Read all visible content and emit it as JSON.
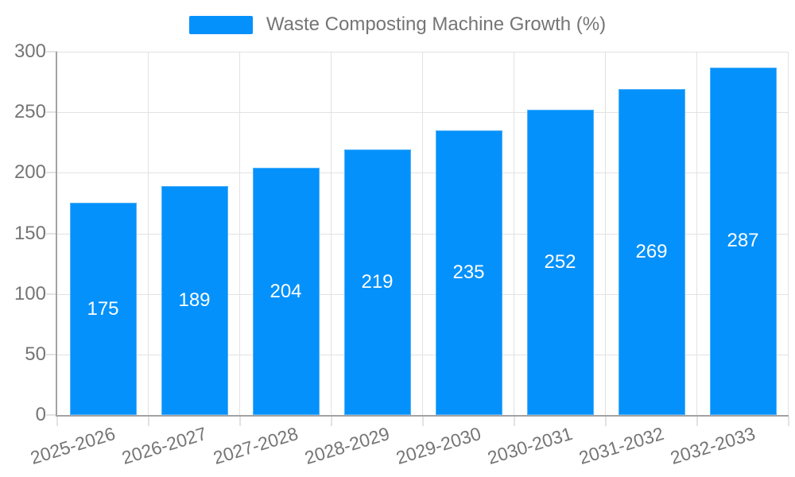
{
  "chart_data": {
    "type": "bar",
    "legend_label": "Waste Composting Machine Growth (%)",
    "categories": [
      "2025-2026",
      "2026-2027",
      "2027-2028",
      "2028-2029",
      "2029-2030",
      "2030-2031",
      "2031-2032",
      "2032-2033"
    ],
    "values": [
      175,
      189,
      204,
      219,
      235,
      252,
      269,
      287
    ],
    "ylim": [
      0,
      300
    ],
    "yticks": [
      0,
      50,
      100,
      150,
      200,
      250,
      300
    ],
    "grid": true,
    "legend_position": "top-center",
    "x_label_rotation_deg": -17,
    "colors": {
      "bar": "#0591fb",
      "grid": "#e2e2e2",
      "axis": "#a3a3a3",
      "tick_text": "#757575",
      "value_label": "#ffffff"
    }
  }
}
